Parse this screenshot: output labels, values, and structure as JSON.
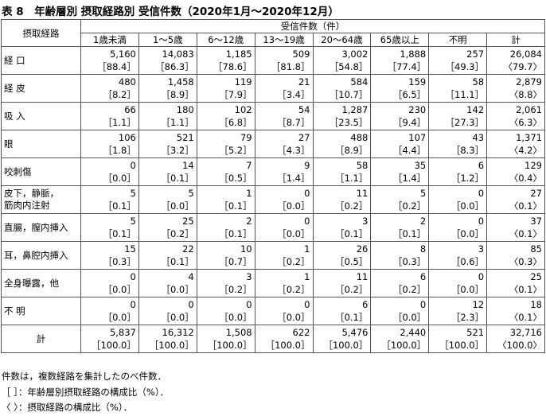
{
  "title": "表 8　年齢層別 摂取経路別 受信件数（2020年1月～2020年12月）",
  "table": {
    "row_header": "摂取経路",
    "group_header": "受信件数（件）",
    "columns": [
      "1歳未満",
      "1～5歳",
      "6～12歳",
      "13～19歳",
      "20～64歳",
      "65歳以上",
      "不明",
      "計"
    ],
    "rows": [
      {
        "label": [
          "経 口"
        ],
        "cells": [
          [
            "5,160",
            "［88.4］"
          ],
          [
            "14,083",
            "［86.3］"
          ],
          [
            "1,185",
            "［78.6］"
          ],
          [
            "509",
            "［81.8］"
          ],
          [
            "3,002",
            "［54.8］"
          ],
          [
            "1,888",
            "［77.4］"
          ],
          [
            "257",
            "［49.3］"
          ],
          [
            "26,084",
            "〈79.7〉"
          ]
        ]
      },
      {
        "label": [
          "経 皮"
        ],
        "cells": [
          [
            "480",
            "［8.2］"
          ],
          [
            "1,458",
            "［8.9］"
          ],
          [
            "119",
            "［7.9］"
          ],
          [
            "21",
            "［3.4］"
          ],
          [
            "584",
            "［10.7］"
          ],
          [
            "159",
            "［6.5］"
          ],
          [
            "58",
            "［11.1］"
          ],
          [
            "2,879",
            "〈8.8〉"
          ]
        ]
      },
      {
        "label": [
          "吸 入"
        ],
        "cells": [
          [
            "66",
            "［1.1］"
          ],
          [
            "180",
            "［1.1］"
          ],
          [
            "102",
            "［6.8］"
          ],
          [
            "54",
            "［8.7］"
          ],
          [
            "1,287",
            "［23.5］"
          ],
          [
            "230",
            "［9.4］"
          ],
          [
            "142",
            "［27.3］"
          ],
          [
            "2,061",
            "〈6.3〉"
          ]
        ]
      },
      {
        "label": [
          "眼"
        ],
        "cells": [
          [
            "106",
            "［1.8］"
          ],
          [
            "521",
            "［3.2］"
          ],
          [
            "79",
            "［5.2］"
          ],
          [
            "27",
            "［4.3］"
          ],
          [
            "488",
            "［8.9］"
          ],
          [
            "107",
            "［4.4］"
          ],
          [
            "43",
            "［8.3］"
          ],
          [
            "1,371",
            "〈4.2〉"
          ]
        ]
      },
      {
        "label": [
          "咬刺傷"
        ],
        "cells": [
          [
            "0",
            "［0.0］"
          ],
          [
            "14",
            "［0.1］"
          ],
          [
            "7",
            "［0.5］"
          ],
          [
            "9",
            "［1.4］"
          ],
          [
            "58",
            "［1.1］"
          ],
          [
            "35",
            "［1.4］"
          ],
          [
            "6",
            "［1.2］"
          ],
          [
            "129",
            "〈0.4〉"
          ]
        ]
      },
      {
        "label": [
          "皮下，静脈，",
          "筋肉内注射"
        ],
        "cells": [
          [
            "5",
            "［0.1］"
          ],
          [
            "5",
            "［0.0］"
          ],
          [
            "1",
            "［0.1］"
          ],
          [
            "0",
            "［0.0］"
          ],
          [
            "11",
            "［0.2］"
          ],
          [
            "5",
            "［0.2］"
          ],
          [
            "0",
            "［0.0］"
          ],
          [
            "27",
            "〈0.1〉"
          ]
        ]
      },
      {
        "label": [
          "直腸，膣内挿入"
        ],
        "cells": [
          [
            "5",
            "［0.1］"
          ],
          [
            "25",
            "［0.2］"
          ],
          [
            "2",
            "［0.1］"
          ],
          [
            "0",
            "［0.0］"
          ],
          [
            "3",
            "［0.1］"
          ],
          [
            "2",
            "［0.1］"
          ],
          [
            "0",
            "［0.0］"
          ],
          [
            "37",
            "〈0.1〉"
          ]
        ]
      },
      {
        "label": [
          "耳，鼻腔内挿入"
        ],
        "cells": [
          [
            "15",
            "［0.3］"
          ],
          [
            "22",
            "［0.1］"
          ],
          [
            "10",
            "［0.7］"
          ],
          [
            "1",
            "［0.2］"
          ],
          [
            "26",
            "［0.5］"
          ],
          [
            "8",
            "［0.3］"
          ],
          [
            "3",
            "［0.6］"
          ],
          [
            "85",
            "〈0.3〉"
          ]
        ]
      },
      {
        "label": [
          "全身曝露，他"
        ],
        "cells": [
          [
            "0",
            "［0.0］"
          ],
          [
            "4",
            "［0.0］"
          ],
          [
            "3",
            "［0.2］"
          ],
          [
            "1",
            "［0.2］"
          ],
          [
            "11",
            "［0.2］"
          ],
          [
            "6",
            "［0.2］"
          ],
          [
            "0",
            "［0.0］"
          ],
          [
            "25",
            "〈0.1〉"
          ]
        ]
      },
      {
        "label": [
          "不 明"
        ],
        "cells": [
          [
            "0",
            "［0.0］"
          ],
          [
            "0",
            "［0.0］"
          ],
          [
            "0",
            "［0.0］"
          ],
          [
            "0",
            "［0.0］"
          ],
          [
            "6",
            "［0.1］"
          ],
          [
            "0",
            "［0.0］"
          ],
          [
            "12",
            "［2.3］"
          ],
          [
            "18",
            "〈0.1〉"
          ]
        ]
      },
      {
        "label": [
          "計"
        ],
        "cells": [
          [
            "5,837",
            "［100.0］"
          ],
          [
            "16,312",
            "［100.0］"
          ],
          [
            "1,508",
            "［100.0］"
          ],
          [
            "622",
            "［100.0］"
          ],
          [
            "5,476",
            "［100.0］"
          ],
          [
            "2,440",
            "［100.0］"
          ],
          [
            "521",
            "［100.0］"
          ],
          [
            "32,716",
            "〈100.0〉"
          ]
        ]
      }
    ]
  },
  "notes": [
    "件数は，複数経路を集計したのべ件数．",
    "［ ］：年齢層別摂取経路の構成比（%）．",
    "〈 〉：摂取経路の構成比（%）．"
  ]
}
